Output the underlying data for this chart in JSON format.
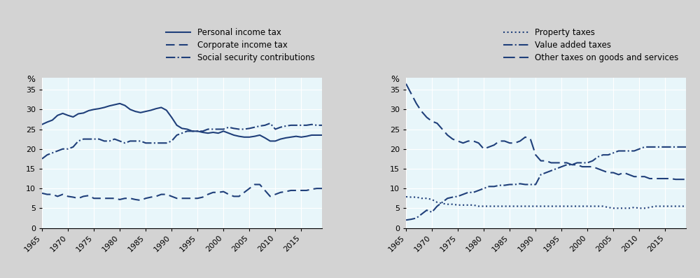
{
  "years": [
    1965,
    1966,
    1967,
    1968,
    1969,
    1970,
    1971,
    1972,
    1973,
    1974,
    1975,
    1976,
    1977,
    1978,
    1979,
    1980,
    1981,
    1982,
    1983,
    1984,
    1985,
    1986,
    1987,
    1988,
    1989,
    1990,
    1991,
    1992,
    1993,
    1994,
    1995,
    1996,
    1997,
    1998,
    1999,
    2000,
    2001,
    2002,
    2003,
    2004,
    2005,
    2006,
    2007,
    2008,
    2009,
    2010,
    2011,
    2012,
    2013,
    2014,
    2015,
    2016,
    2017,
    2018,
    2019
  ],
  "personal_income_tax": [
    26.2,
    26.8,
    27.3,
    28.5,
    29.0,
    28.5,
    28.1,
    28.9,
    29.1,
    29.7,
    30.0,
    30.2,
    30.5,
    30.9,
    31.2,
    31.5,
    31.0,
    30.0,
    29.5,
    29.2,
    29.5,
    29.8,
    30.2,
    30.5,
    29.8,
    28.0,
    26.0,
    25.2,
    25.0,
    24.5,
    24.5,
    24.2,
    24.0,
    24.2,
    24.0,
    24.5,
    24.0,
    23.5,
    23.2,
    23.0,
    23.0,
    23.2,
    23.5,
    22.8,
    22.0,
    22.0,
    22.5,
    22.8,
    23.0,
    23.2,
    23.0,
    23.2,
    23.5,
    23.5,
    23.5
  ],
  "corporate_income_tax": [
    8.8,
    8.5,
    8.5,
    8.0,
    8.5,
    8.0,
    7.8,
    7.5,
    8.0,
    8.2,
    7.5,
    7.5,
    7.5,
    7.5,
    7.5,
    7.2,
    7.5,
    7.5,
    7.2,
    7.0,
    7.5,
    7.8,
    8.0,
    8.5,
    8.5,
    8.0,
    7.5,
    7.5,
    7.5,
    7.5,
    7.5,
    7.8,
    8.5,
    9.0,
    9.0,
    9.2,
    8.5,
    8.0,
    8.0,
    9.0,
    10.0,
    11.0,
    11.0,
    9.5,
    8.0,
    8.5,
    9.0,
    9.2,
    9.5,
    9.5,
    9.5,
    9.5,
    9.8,
    10.0,
    10.0
  ],
  "social_security": [
    17.5,
    18.5,
    19.0,
    19.5,
    20.0,
    20.0,
    20.5,
    22.0,
    22.5,
    22.5,
    22.5,
    22.5,
    22.0,
    22.0,
    22.5,
    22.0,
    21.5,
    22.0,
    22.0,
    22.0,
    21.5,
    21.5,
    21.5,
    21.5,
    21.5,
    22.0,
    23.5,
    24.0,
    24.5,
    24.5,
    24.5,
    24.5,
    25.0,
    25.0,
    25.0,
    25.0,
    25.5,
    25.2,
    25.0,
    25.0,
    25.2,
    25.5,
    25.8,
    26.0,
    26.5,
    25.0,
    25.5,
    25.8,
    26.0,
    26.0,
    26.0,
    26.0,
    26.2,
    26.0,
    26.0
  ],
  "property_taxes": [
    7.9,
    7.8,
    7.8,
    7.5,
    7.5,
    7.2,
    6.5,
    6.2,
    6.0,
    6.0,
    5.8,
    5.8,
    5.8,
    5.8,
    5.5,
    5.5,
    5.5,
    5.5,
    5.5,
    5.5,
    5.5,
    5.5,
    5.5,
    5.5,
    5.5,
    5.5,
    5.5,
    5.5,
    5.5,
    5.5,
    5.5,
    5.5,
    5.5,
    5.5,
    5.5,
    5.5,
    5.5,
    5.5,
    5.5,
    5.2,
    5.0,
    5.0,
    5.0,
    5.0,
    5.2,
    5.0,
    5.0,
    5.2,
    5.5,
    5.5,
    5.5,
    5.5,
    5.5,
    5.5,
    5.5
  ],
  "value_added_taxes": [
    2.0,
    2.2,
    2.5,
    3.5,
    4.5,
    4.0,
    5.5,
    6.5,
    7.5,
    7.8,
    8.0,
    8.5,
    9.0,
    9.0,
    9.5,
    10.0,
    10.5,
    10.5,
    10.8,
    10.8,
    11.0,
    11.0,
    11.2,
    11.0,
    11.0,
    11.0,
    13.5,
    14.0,
    14.5,
    15.0,
    15.5,
    16.0,
    16.0,
    16.5,
    16.5,
    16.5,
    17.0,
    18.0,
    18.5,
    18.5,
    19.0,
    19.5,
    19.5,
    19.5,
    19.5,
    20.0,
    20.5,
    20.5,
    20.5,
    20.5,
    20.5,
    20.5,
    20.5,
    20.5,
    20.5
  ],
  "other_goods_services": [
    36.5,
    34.0,
    31.5,
    29.5,
    28.0,
    27.0,
    26.5,
    25.0,
    23.5,
    22.5,
    22.0,
    21.5,
    22.0,
    22.0,
    21.5,
    20.0,
    20.5,
    21.0,
    22.0,
    22.0,
    21.5,
    21.5,
    22.0,
    23.0,
    22.5,
    18.5,
    17.0,
    17.0,
    16.5,
    16.5,
    16.5,
    16.5,
    16.0,
    16.0,
    15.5,
    15.5,
    15.5,
    15.0,
    14.5,
    14.0,
    14.0,
    13.5,
    14.0,
    13.5,
    13.0,
    13.0,
    13.0,
    12.5,
    12.5,
    12.5,
    12.5,
    12.5,
    12.3,
    12.3,
    12.3
  ],
  "line_color": "#1F3F7A",
  "bg_color": "#E0F2F7",
  "legend_bg": "#D3D3D3",
  "plot_bg": "#E8F6FA",
  "yticks": [
    0,
    5,
    10,
    15,
    20,
    25,
    30,
    35
  ],
  "xticks": [
    1965,
    1970,
    1975,
    1980,
    1985,
    1990,
    1995,
    2000,
    2005,
    2010,
    2015
  ],
  "ylim": [
    0,
    38
  ],
  "xlim": [
    1965,
    2019
  ]
}
